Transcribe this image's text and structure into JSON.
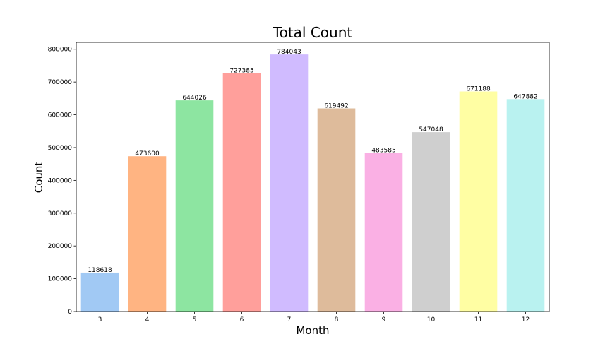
{
  "chart_data": {
    "type": "bar",
    "title": "Total Count",
    "xlabel": "Month",
    "ylabel": "Count",
    "categories": [
      "3",
      "4",
      "5",
      "6",
      "7",
      "8",
      "9",
      "10",
      "11",
      "12"
    ],
    "values": [
      118618,
      473600,
      644026,
      727385,
      784043,
      619492,
      483585,
      547048,
      671188,
      647882
    ],
    "data_labels": [
      "118618",
      "473600",
      "644026",
      "727385",
      "784043",
      "619492",
      "483585",
      "547048",
      "671188",
      "647882"
    ],
    "colors": [
      "#a1c9f4",
      "#ffb482",
      "#8de5a1",
      "#ff9f9b",
      "#d0bbff",
      "#debb9b",
      "#fab0e4",
      "#cfcfcf",
      "#fffea3",
      "#b9f2f0"
    ],
    "ylim": [
      0,
      821000
    ],
    "yticks": [
      0,
      100000,
      200000,
      300000,
      400000,
      500000,
      600000,
      700000,
      800000
    ],
    "ytick_labels": [
      "0",
      "100000",
      "200000",
      "300000",
      "400000",
      "500000",
      "600000",
      "700000",
      "800000"
    ],
    "grid": false,
    "legend": false
  }
}
